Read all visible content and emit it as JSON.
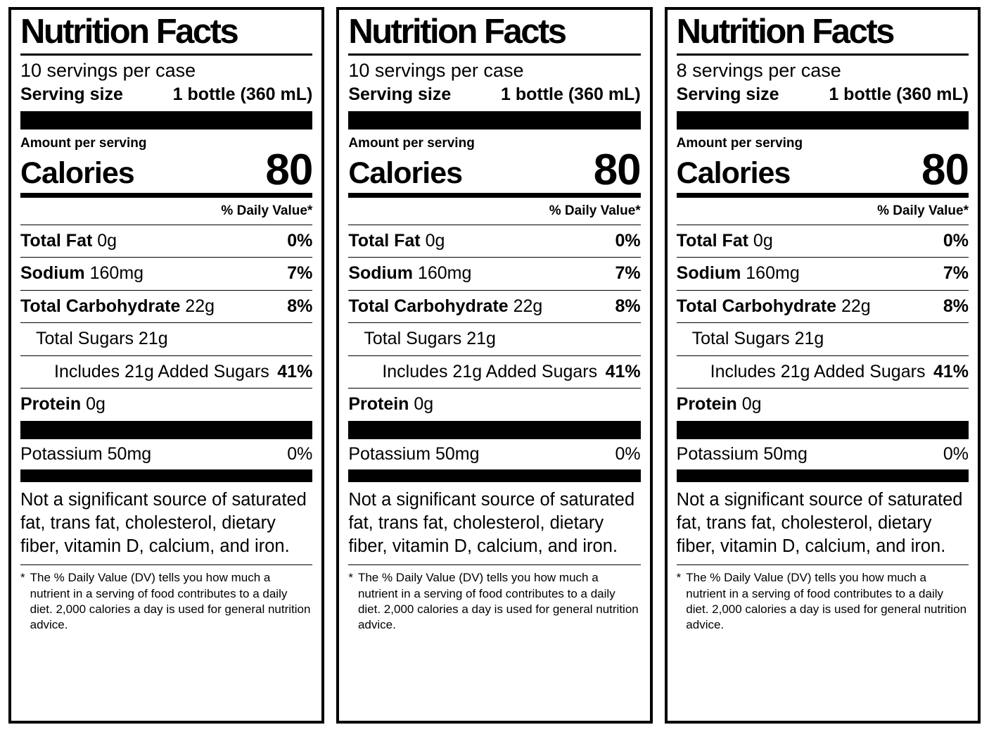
{
  "labels": [
    {
      "title": "Nutrition Facts",
      "servings_per_case": "10 servings per case",
      "serving_size": {
        "label": "Serving size",
        "value": "1 bottle (360 mL)"
      },
      "amount_per_serving": "Amount per serving",
      "calories": {
        "label": "Calories",
        "value": "80"
      },
      "daily_value_header": "% Daily Value*",
      "nutrients": {
        "total_fat": {
          "name": "Total Fat",
          "amount": "0g",
          "dv": "0%"
        },
        "sodium": {
          "name": "Sodium",
          "amount": "160mg",
          "dv": "7%"
        },
        "total_carbohydrate": {
          "name": "Total Carbohydrate",
          "amount": "22g",
          "dv": "8%"
        },
        "total_sugars": {
          "name": "Total Sugars 21g"
        },
        "added_sugars": {
          "name": "Includes 21g Added Sugars",
          "dv": "41%"
        },
        "protein": {
          "name": "Protein",
          "amount": "0g"
        },
        "potassium": {
          "name": "Potassium 50mg",
          "dv": "0%"
        }
      },
      "not_significant_note": "Not a significant source of saturated fat, trans fat, cholesterol, dietary fiber, vitamin D, calcium, and iron.",
      "footnote_marker": "*",
      "footnote": "The % Daily Value (DV) tells you how much a nutrient in a serving of food contributes to a daily diet. 2,000 calories a day is used for general nutrition advice."
    },
    {
      "title": "Nutrition Facts",
      "servings_per_case": "10 servings per case",
      "serving_size": {
        "label": "Serving size",
        "value": "1 bottle (360 mL)"
      },
      "amount_per_serving": "Amount per serving",
      "calories": {
        "label": "Calories",
        "value": "80"
      },
      "daily_value_header": "% Daily Value*",
      "nutrients": {
        "total_fat": {
          "name": "Total Fat",
          "amount": "0g",
          "dv": "0%"
        },
        "sodium": {
          "name": "Sodium",
          "amount": "160mg",
          "dv": "7%"
        },
        "total_carbohydrate": {
          "name": "Total Carbohydrate",
          "amount": "22g",
          "dv": "8%"
        },
        "total_sugars": {
          "name": "Total Sugars 21g"
        },
        "added_sugars": {
          "name": "Includes 21g Added Sugars",
          "dv": "41%"
        },
        "protein": {
          "name": "Protein",
          "amount": "0g"
        },
        "potassium": {
          "name": "Potassium 50mg",
          "dv": "0%"
        }
      },
      "not_significant_note": "Not a significant source of saturated fat, trans fat, cholesterol, dietary fiber, vitamin D, calcium, and iron.",
      "footnote_marker": "*",
      "footnote": "The % Daily Value (DV) tells you how much a nutrient in a serving of food contributes to a daily diet. 2,000 calories a day is used for general nutrition advice."
    },
    {
      "title": "Nutrition Facts",
      "servings_per_case": "8 servings per case",
      "serving_size": {
        "label": "Serving size",
        "value": "1 bottle (360 mL)"
      },
      "amount_per_serving": "Amount per serving",
      "calories": {
        "label": "Calories",
        "value": "80"
      },
      "daily_value_header": "% Daily Value*",
      "nutrients": {
        "total_fat": {
          "name": "Total Fat",
          "amount": "0g",
          "dv": "0%"
        },
        "sodium": {
          "name": "Sodium",
          "amount": "160mg",
          "dv": "7%"
        },
        "total_carbohydrate": {
          "name": "Total Carbohydrate",
          "amount": "22g",
          "dv": "8%"
        },
        "total_sugars": {
          "name": "Total Sugars 21g"
        },
        "added_sugars": {
          "name": "Includes 21g Added Sugars",
          "dv": "41%"
        },
        "protein": {
          "name": "Protein",
          "amount": "0g"
        },
        "potassium": {
          "name": "Potassium 50mg",
          "dv": "0%"
        }
      },
      "not_significant_note": "Not a significant source of saturated fat, trans fat, cholesterol, dietary fiber, vitamin D, calcium, and iron.",
      "footnote_marker": "*",
      "footnote": "The % Daily Value (DV) tells you how much a nutrient in a serving of food contributes to a daily diet. 2,000 calories a day is used for general nutrition advice."
    }
  ]
}
